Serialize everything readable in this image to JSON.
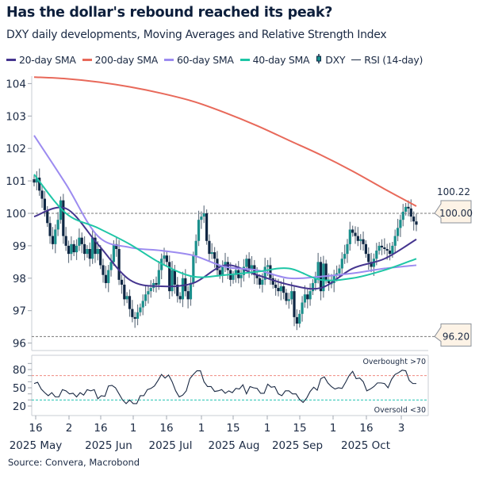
{
  "title": "Has the dollar's rebound reached its peak?",
  "subtitle": "DXY daily developments, Moving Averages and Relative Strength Index",
  "source": "Source: Convera, Macrobond",
  "legend": [
    {
      "label": "20-day SMA",
      "color": "#45358f",
      "kind": "line"
    },
    {
      "label": "200-day SMA",
      "color": "#e8695a",
      "kind": "line"
    },
    {
      "label": "60-day SMA",
      "color": "#9c8bf0",
      "kind": "line"
    },
    {
      "label": "40-day SMA",
      "color": "#1ec6a6",
      "kind": "line"
    },
    {
      "label": "DXY",
      "color": "#1a8f8c",
      "kind": "candle"
    },
    {
      "label": "RSI (14-day)",
      "color": "#1b2a44",
      "kind": "line"
    }
  ],
  "chart_data": [
    {
      "type": "candlestick",
      "panel": "price",
      "x_range": [
        "2025-05-15",
        "2025-11-07"
      ],
      "ylim": [
        96,
        104.3
      ],
      "yticks": [
        96,
        97,
        98,
        99,
        100,
        101,
        102,
        103,
        104
      ],
      "grid": false,
      "up_color": "#1a8f8c",
      "down_color": "#0f2744",
      "dxy_close": [
        100.95,
        101.1,
        100.7,
        100.45,
        100.1,
        99.7,
        99.3,
        99.05,
        99.5,
        99.8,
        100.4,
        99.3,
        99.0,
        98.75,
        99.05,
        98.8,
        99.0,
        99.25,
        99.05,
        98.75,
        98.9,
        98.6,
        99.25,
        98.75,
        98.9,
        98.4,
        98.1,
        97.85,
        98.25,
        98.5,
        99.05,
        98.9,
        97.95,
        97.8,
        97.35,
        97.45,
        97.05,
        96.8,
        96.75,
        96.95,
        97.1,
        97.3,
        97.5,
        97.6,
        97.7,
        97.85,
        97.8,
        98.25,
        98.6,
        98.7,
        98.5,
        97.6,
        98.25,
        97.8,
        97.45,
        97.35,
        98.0,
        97.6,
        97.35,
        97.85,
        98.7,
        99.15,
        99.8,
        99.9,
        100.0,
        99.15,
        98.75,
        98.8,
        98.6,
        98.25,
        98.1,
        98.35,
        98.5,
        98.25,
        97.95,
        98.1,
        98.25,
        98.0,
        98.1,
        98.35,
        98.6,
        98.25,
        98.4,
        98.1,
        98.0,
        97.8,
        97.95,
        98.35,
        98.4,
        98.0,
        97.8,
        97.7,
        97.6,
        97.75,
        97.55,
        97.3,
        97.35,
        97.6,
        96.8,
        96.6,
        96.9,
        97.25,
        97.5,
        97.35,
        97.6,
        97.85,
        98.0,
        98.5,
        97.6,
        98.45,
        97.95,
        97.85,
        97.85,
        98.1,
        98.15,
        98.3,
        98.6,
        98.75,
        99.05,
        99.5,
        99.4,
        99.3,
        99.15,
        99.2,
        99.05,
        98.75,
        98.5,
        98.35,
        98.6,
        98.85,
        99.0,
        98.95,
        98.9,
        98.85,
        98.75,
        99.0,
        99.3,
        99.55,
        99.8,
        100.05,
        100.2,
        100.15,
        99.9,
        99.75,
        99.65
      ],
      "series": [
        {
          "name": "20-day SMA",
          "color": "#45358f",
          "values": [
            99.9,
            100.15,
            99.05,
            97.95,
            97.75,
            97.85,
            98.4,
            98.1,
            97.8,
            97.7,
            98.3,
            98.6,
            99.2
          ]
        },
        {
          "name": "200-day SMA",
          "color": "#e8695a",
          "values": [
            104.2,
            104.15,
            104.05,
            103.9,
            103.7,
            103.45,
            103.1,
            102.7,
            102.25,
            101.8,
            101.3,
            100.75,
            100.22
          ]
        },
        {
          "name": "60-day SMA",
          "color": "#9c8bf0",
          "values": [
            102.4,
            100.9,
            99.3,
            98.95,
            98.85,
            98.7,
            98.35,
            98.25,
            98.0,
            98.05,
            98.15,
            98.3,
            98.4
          ]
        },
        {
          "name": "40-day SMA",
          "color": "#1ec6a6",
          "values": [
            101.2,
            100.0,
            99.55,
            99.05,
            98.45,
            98.05,
            98.1,
            98.2,
            98.3,
            97.95,
            98.0,
            98.25,
            98.6
          ]
        }
      ],
      "reference_lines": [
        {
          "value": 100.0,
          "label": "100.00"
        },
        {
          "value": 96.2,
          "label": "96.20"
        }
      ],
      "end_label_200": "100.22"
    },
    {
      "type": "line",
      "panel": "rsi",
      "name": "RSI (14-day)",
      "ylim": [
        10,
        100
      ],
      "yticks": [
        20,
        50,
        80
      ],
      "values": [
        57,
        59,
        48,
        42,
        37,
        42,
        35,
        35,
        47,
        45,
        40,
        41,
        35,
        42,
        38,
        47,
        45,
        47,
        32,
        37,
        36,
        53,
        54,
        50,
        40,
        30,
        24,
        30,
        24,
        24,
        37,
        37,
        47,
        49,
        53,
        62,
        72,
        66,
        71,
        60,
        45,
        35,
        38,
        45,
        65,
        72,
        78,
        78,
        60,
        52,
        52,
        44,
        45,
        47,
        41,
        45,
        42,
        49,
        48,
        55,
        40,
        52,
        50,
        49,
        41,
        41,
        56,
        51,
        52,
        40,
        37,
        45,
        45,
        40,
        40,
        31,
        26,
        33,
        44,
        51,
        46,
        65,
        68,
        58,
        52,
        48,
        50,
        49,
        59,
        70,
        77,
        65,
        66,
        60,
        45,
        48,
        52,
        58,
        58,
        57,
        50,
        64,
        72,
        75,
        79,
        78,
        62,
        57,
        57
      ],
      "overbought": {
        "value": 70,
        "label": "Overbought >70",
        "color": "#f08a80"
      },
      "oversold": {
        "value": 30,
        "label": "Oversold <30",
        "color": "#22c2b3"
      }
    }
  ],
  "x_axis": {
    "day_ticks": [
      "16",
      "2",
      "16",
      "1",
      "16",
      "1",
      "15",
      "1",
      "15",
      "1",
      "16",
      "3"
    ],
    "month_labels": [
      "2025 May",
      "2025 Jun",
      "2025 Jul",
      "2025 Aug",
      "2025 Sep",
      "2025 Oct"
    ]
  }
}
